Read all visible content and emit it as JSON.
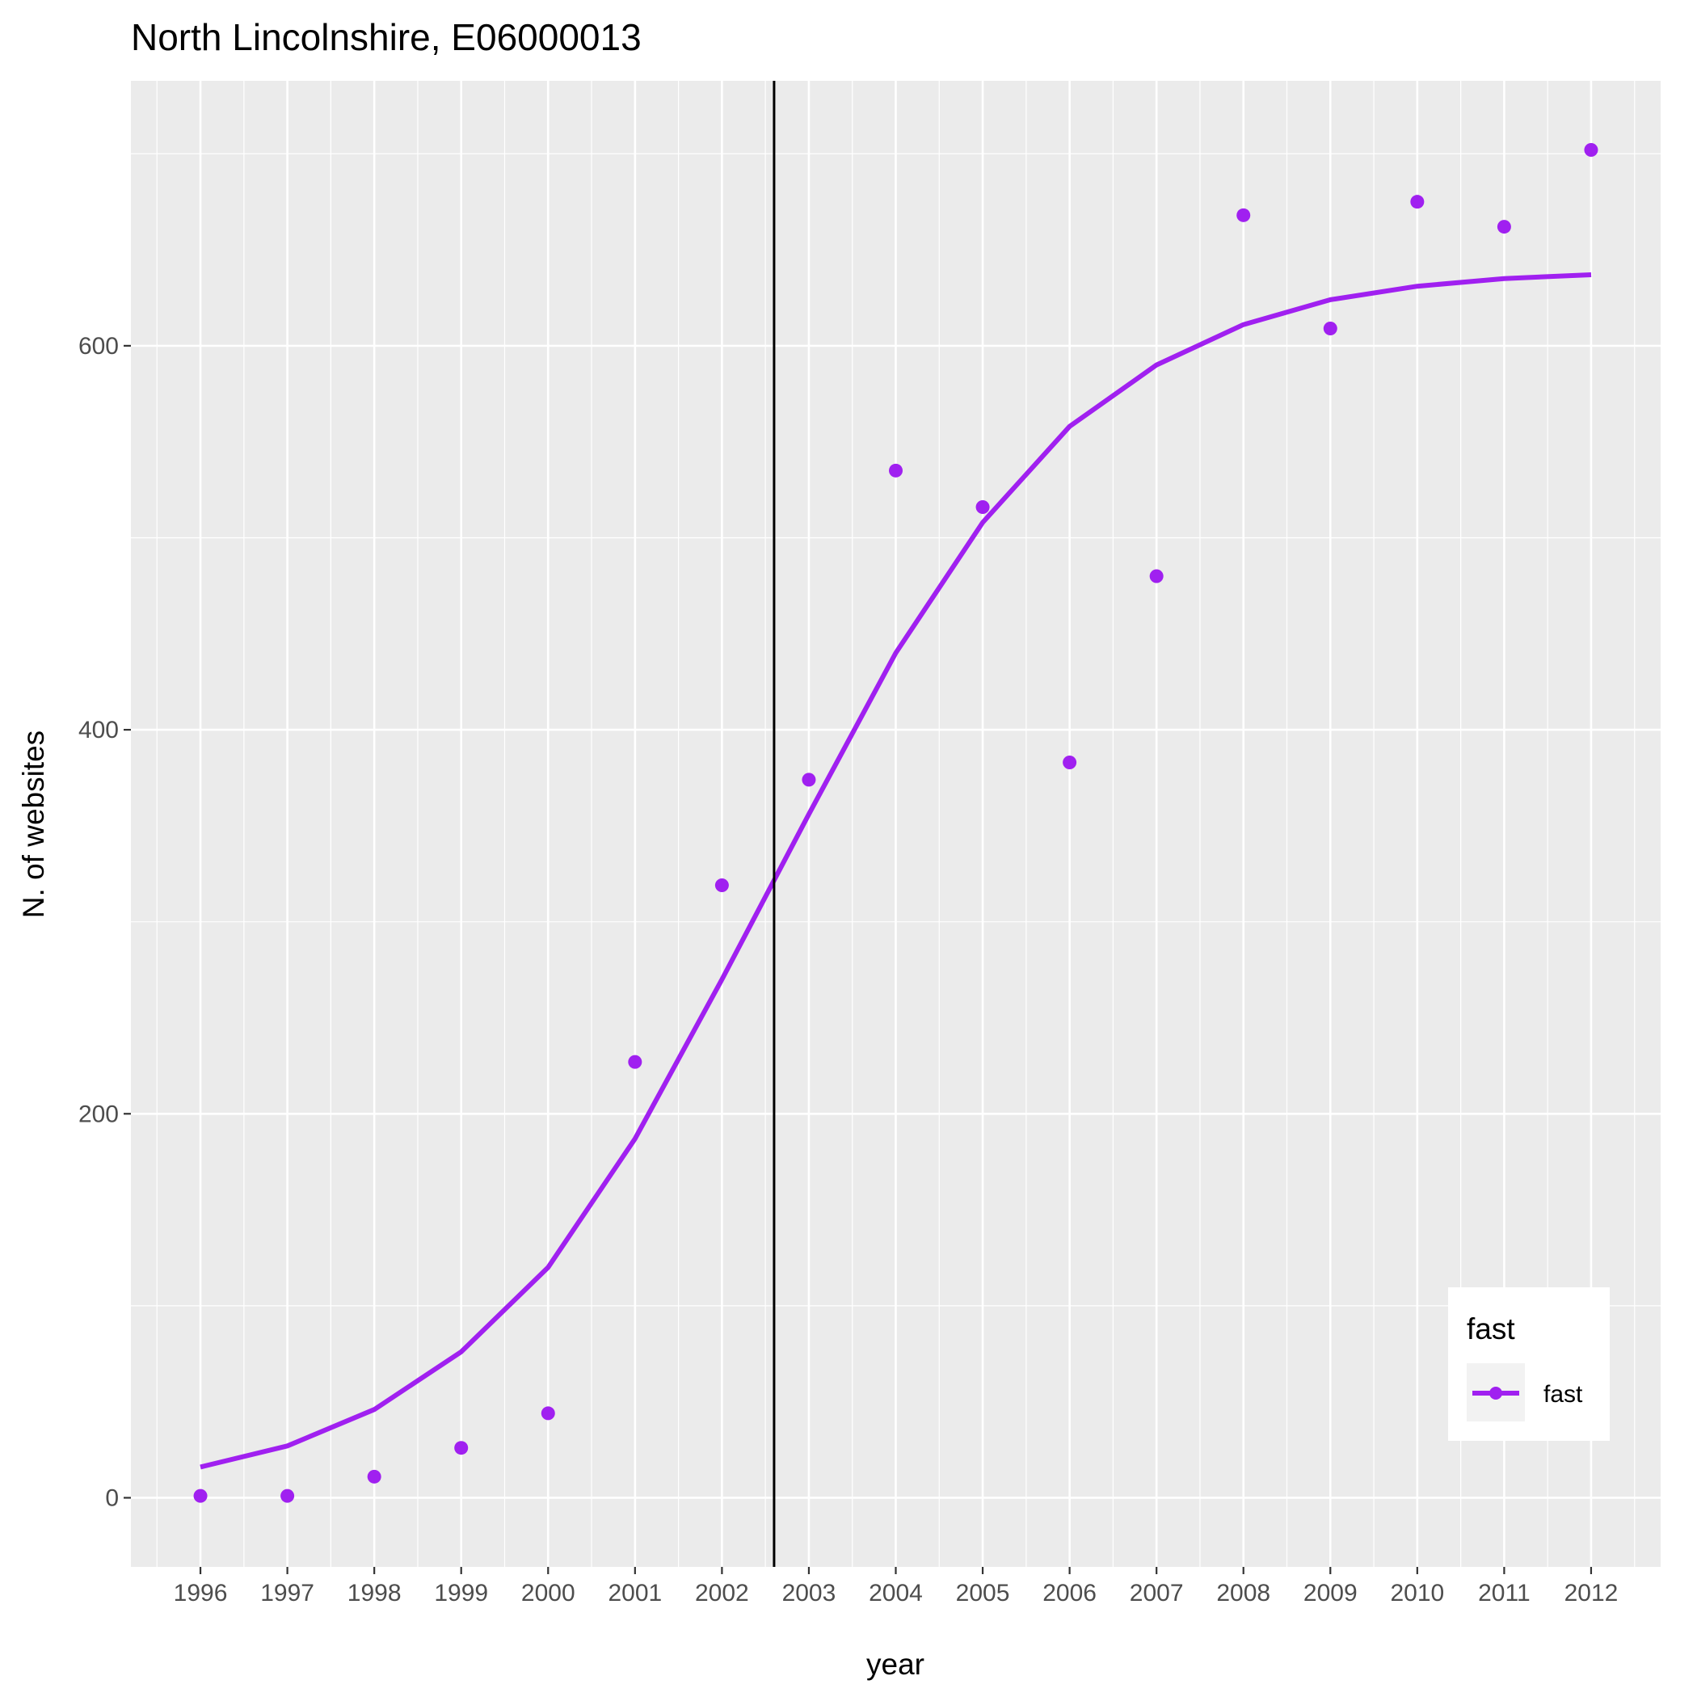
{
  "chart_data": {
    "type": "scatter",
    "title": "North Lincolnshire, E06000013",
    "xlabel": "year",
    "ylabel": "N. of websites",
    "x": [
      1996,
      1997,
      1998,
      1999,
      2000,
      2001,
      2002,
      2003,
      2004,
      2005,
      2006,
      2007,
      2008,
      2009,
      2010,
      2011,
      2012
    ],
    "series": [
      {
        "name": "fast",
        "points": [
          1,
          1,
          11,
          26,
          44,
          227,
          319,
          374,
          535,
          516,
          383,
          480,
          668,
          609,
          675,
          662,
          702
        ],
        "fit": [
          16,
          27,
          46,
          76,
          120,
          187,
          270,
          356,
          440,
          508,
          558,
          590,
          611,
          624,
          631,
          635,
          637
        ]
      }
    ],
    "vline": 2002.6,
    "xlim": [
      1995.2,
      2012.8
    ],
    "ylim": [
      -36,
      738
    ],
    "yticks": [
      0,
      200,
      400,
      600
    ],
    "grid": true,
    "legend": {
      "title": "fast",
      "position": "bottom-right"
    },
    "colors": {
      "series": "#a020f0",
      "panel": "#ebebeb",
      "grid": "#ffffff",
      "vline": "#000000"
    }
  }
}
